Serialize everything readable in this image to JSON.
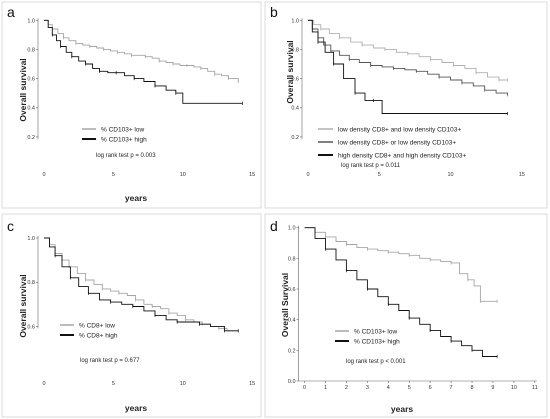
{
  "chart_data": [
    {
      "type": "line",
      "panel_label": "a",
      "xlabel": "years",
      "ylabel": "Overall survival",
      "xlim": [
        0,
        16
      ],
      "ylim": [
        0,
        1.05
      ],
      "x_ticks": [
        0,
        5,
        10,
        15
      ],
      "x_tick_labels": [
        "0",
        "5",
        "10",
        "15"
      ],
      "y_ticks": [
        0.2,
        0.4,
        0.6,
        0.8,
        1.0
      ],
      "y_tick_labels": [
        "0.2",
        "0.4",
        "0.6",
        "0.8",
        "1.0"
      ],
      "x_axis_line": false,
      "grid": false,
      "legend_position": "bottom-left",
      "series": [
        {
          "name": "% CD103+ low",
          "color": "#a6a6a6",
          "x": [
            0,
            0.3,
            0.6,
            1.0,
            1.4,
            1.8,
            2.3,
            2.8,
            3.3,
            3.8,
            4.3,
            4.8,
            5.3,
            5.8,
            6.3,
            6.8,
            7.3,
            7.8,
            8.3,
            8.8,
            9.3,
            9.8,
            10.3,
            10.8,
            11.3,
            11.8,
            12.3,
            12.8,
            13.3,
            14.0
          ],
          "y": [
            1.0,
            0.97,
            0.94,
            0.91,
            0.88,
            0.86,
            0.84,
            0.83,
            0.82,
            0.81,
            0.8,
            0.79,
            0.78,
            0.77,
            0.76,
            0.76,
            0.75,
            0.74,
            0.72,
            0.71,
            0.7,
            0.69,
            0.69,
            0.68,
            0.67,
            0.65,
            0.63,
            0.62,
            0.6,
            0.58
          ]
        },
        {
          "name": "% CD103+ high",
          "color": "#111111",
          "x": [
            0,
            0.3,
            0.6,
            0.9,
            1.2,
            1.6,
            2.0,
            2.5,
            3.0,
            3.5,
            4.0,
            4.6,
            5.2,
            5.8,
            6.5,
            7.2,
            8.0,
            8.8,
            9.5,
            10.0,
            14.3
          ],
          "y": [
            1.0,
            0.95,
            0.9,
            0.86,
            0.82,
            0.78,
            0.75,
            0.72,
            0.7,
            0.67,
            0.65,
            0.64,
            0.64,
            0.62,
            0.6,
            0.58,
            0.55,
            0.52,
            0.5,
            0.43,
            0.43
          ]
        }
      ],
      "annotation": "log rank test p = 0.003"
    },
    {
      "type": "line",
      "panel_label": "b",
      "xlabel": "",
      "ylabel": "Overall survival",
      "xlim": [
        0,
        16
      ],
      "ylim": [
        0,
        1.05
      ],
      "x_ticks": [
        0,
        5,
        10,
        15
      ],
      "x_tick_labels": [
        "0",
        "5",
        "10",
        "15"
      ],
      "y_ticks": [
        0.2,
        0.4,
        0.6,
        0.8,
        1.0
      ],
      "y_tick_labels": [
        "0.2",
        "0.4",
        "0.6",
        "0.8",
        "1.0"
      ],
      "x_axis_line": false,
      "grid": false,
      "legend_position": "bottom-left",
      "series": [
        {
          "name": "low density CD8+ and low density CD103+",
          "color": "#b0b0b0",
          "x": [
            0,
            0.4,
            0.9,
            1.5,
            2.2,
            3.0,
            3.8,
            4.6,
            5.4,
            6.2,
            7.0,
            7.8,
            8.6,
            9.4,
            10.2,
            11.0,
            11.8,
            12.6,
            13.4,
            14.0
          ],
          "y": [
            1.0,
            0.97,
            0.94,
            0.91,
            0.88,
            0.85,
            0.83,
            0.81,
            0.8,
            0.78,
            0.77,
            0.75,
            0.73,
            0.71,
            0.69,
            0.67,
            0.64,
            0.61,
            0.59,
            0.59
          ]
        },
        {
          "name": "low density CD8+ or low density CD103+",
          "color": "#555555",
          "x": [
            0,
            0.3,
            0.7,
            1.1,
            1.6,
            2.2,
            2.9,
            3.6,
            4.4,
            5.2,
            6.0,
            6.8,
            7.6,
            8.4,
            9.2,
            10.0,
            10.8,
            11.6,
            12.4,
            13.2,
            14.0
          ],
          "y": [
            1.0,
            0.94,
            0.88,
            0.83,
            0.79,
            0.76,
            0.73,
            0.71,
            0.69,
            0.68,
            0.67,
            0.66,
            0.65,
            0.63,
            0.61,
            0.59,
            0.57,
            0.55,
            0.52,
            0.5,
            0.49
          ]
        },
        {
          "name": "high density CD8+ and high density CD103+",
          "color": "#111111",
          "x": [
            0,
            0.3,
            0.7,
            1.2,
            1.8,
            2.5,
            3.3,
            4.0,
            4.6,
            5.2,
            14.0
          ],
          "y": [
            1.0,
            0.92,
            0.85,
            0.78,
            0.7,
            0.6,
            0.5,
            0.45,
            0.45,
            0.36,
            0.36
          ]
        }
      ],
      "annotation": "log rank test p = 0.011"
    },
    {
      "type": "line",
      "panel_label": "c",
      "xlabel": "years",
      "ylabel": "Overall survival",
      "xlim": [
        0,
        16
      ],
      "ylim": [
        0.38,
        1.05
      ],
      "x_ticks": [
        0,
        5,
        10,
        15
      ],
      "x_tick_labels": [
        "0",
        "5",
        "10",
        "15"
      ],
      "y_ticks": [
        0.6,
        0.8,
        1.0
      ],
      "y_tick_labels": [
        "0.6",
        "0.8",
        "1.0"
      ],
      "x_axis_line": false,
      "grid": false,
      "legend_position": "bottom-left",
      "series": [
        {
          "name": "% CD8+ low",
          "color": "#a6a6a6",
          "x": [
            0,
            0.4,
            0.8,
            1.3,
            1.8,
            2.4,
            3.0,
            3.6,
            4.2,
            4.8,
            5.4,
            6.0,
            6.6,
            7.2,
            7.8,
            8.4,
            9.0,
            9.6,
            10.2,
            10.8,
            11.4,
            12.0,
            12.6,
            13.2,
            14.0
          ],
          "y": [
            1.0,
            0.97,
            0.93,
            0.9,
            0.87,
            0.84,
            0.81,
            0.79,
            0.77,
            0.76,
            0.75,
            0.74,
            0.72,
            0.7,
            0.69,
            0.68,
            0.66,
            0.65,
            0.63,
            0.62,
            0.61,
            0.6,
            0.59,
            0.58,
            0.58
          ]
        },
        {
          "name": "% CD8+ high",
          "color": "#111111",
          "x": [
            0,
            0.4,
            0.8,
            1.3,
            1.9,
            2.5,
            3.2,
            4.0,
            4.8,
            5.6,
            6.4,
            7.2,
            8.0,
            8.8,
            9.6,
            10.4,
            11.2,
            12.0,
            13.0,
            14.0
          ],
          "y": [
            1.0,
            0.96,
            0.92,
            0.87,
            0.82,
            0.78,
            0.75,
            0.72,
            0.71,
            0.7,
            0.69,
            0.67,
            0.65,
            0.63,
            0.62,
            0.62,
            0.61,
            0.6,
            0.58,
            0.58
          ]
        }
      ],
      "annotation": "log rank test p = 0.677"
    },
    {
      "type": "line",
      "panel_label": "d",
      "xlabel": "years",
      "ylabel": "Overall Survival",
      "xlim": [
        -0.6,
        11.2
      ],
      "ylim": [
        0,
        1.05
      ],
      "x_ticks": [
        0,
        1,
        2,
        3,
        4,
        5,
        6,
        7,
        8,
        9,
        10,
        11
      ],
      "x_tick_labels": [
        "0",
        "1",
        "2",
        "3",
        "4",
        "5",
        "6",
        "7",
        "8",
        "9",
        "10",
        "11"
      ],
      "y_ticks": [
        0.0,
        0.2,
        0.4,
        0.6,
        0.8,
        1.0
      ],
      "y_tick_labels": [
        "0.0",
        "0.2",
        "0.4",
        "0.6",
        "0.8",
        "1.0"
      ],
      "x_axis_line": true,
      "grid": false,
      "legend_position": "bottom-left",
      "series": [
        {
          "name": "% CD103+ low",
          "color": "#a6a6a6",
          "x": [
            0,
            0.5,
            1.0,
            1.5,
            2.0,
            2.5,
            3.0,
            3.5,
            4.0,
            4.5,
            5.0,
            5.5,
            6.0,
            6.5,
            7.0,
            7.4,
            7.8,
            8.1,
            8.4,
            9.2
          ],
          "y": [
            1.0,
            0.97,
            0.94,
            0.91,
            0.89,
            0.87,
            0.86,
            0.85,
            0.84,
            0.83,
            0.82,
            0.8,
            0.79,
            0.78,
            0.77,
            0.7,
            0.66,
            0.62,
            0.52,
            0.52
          ]
        },
        {
          "name": "% CD103+ high",
          "color": "#111111",
          "x": [
            0,
            0.5,
            1.0,
            1.5,
            2.0,
            2.5,
            3.0,
            3.5,
            4.0,
            4.5,
            5.0,
            5.5,
            6.0,
            6.5,
            7.0,
            7.5,
            8.0,
            8.5,
            9.2
          ],
          "y": [
            1.0,
            0.93,
            0.86,
            0.79,
            0.72,
            0.66,
            0.6,
            0.55,
            0.5,
            0.46,
            0.41,
            0.37,
            0.33,
            0.29,
            0.26,
            0.23,
            0.2,
            0.16,
            0.16
          ]
        }
      ],
      "annotation": "log rank test p < 0.001"
    }
  ]
}
